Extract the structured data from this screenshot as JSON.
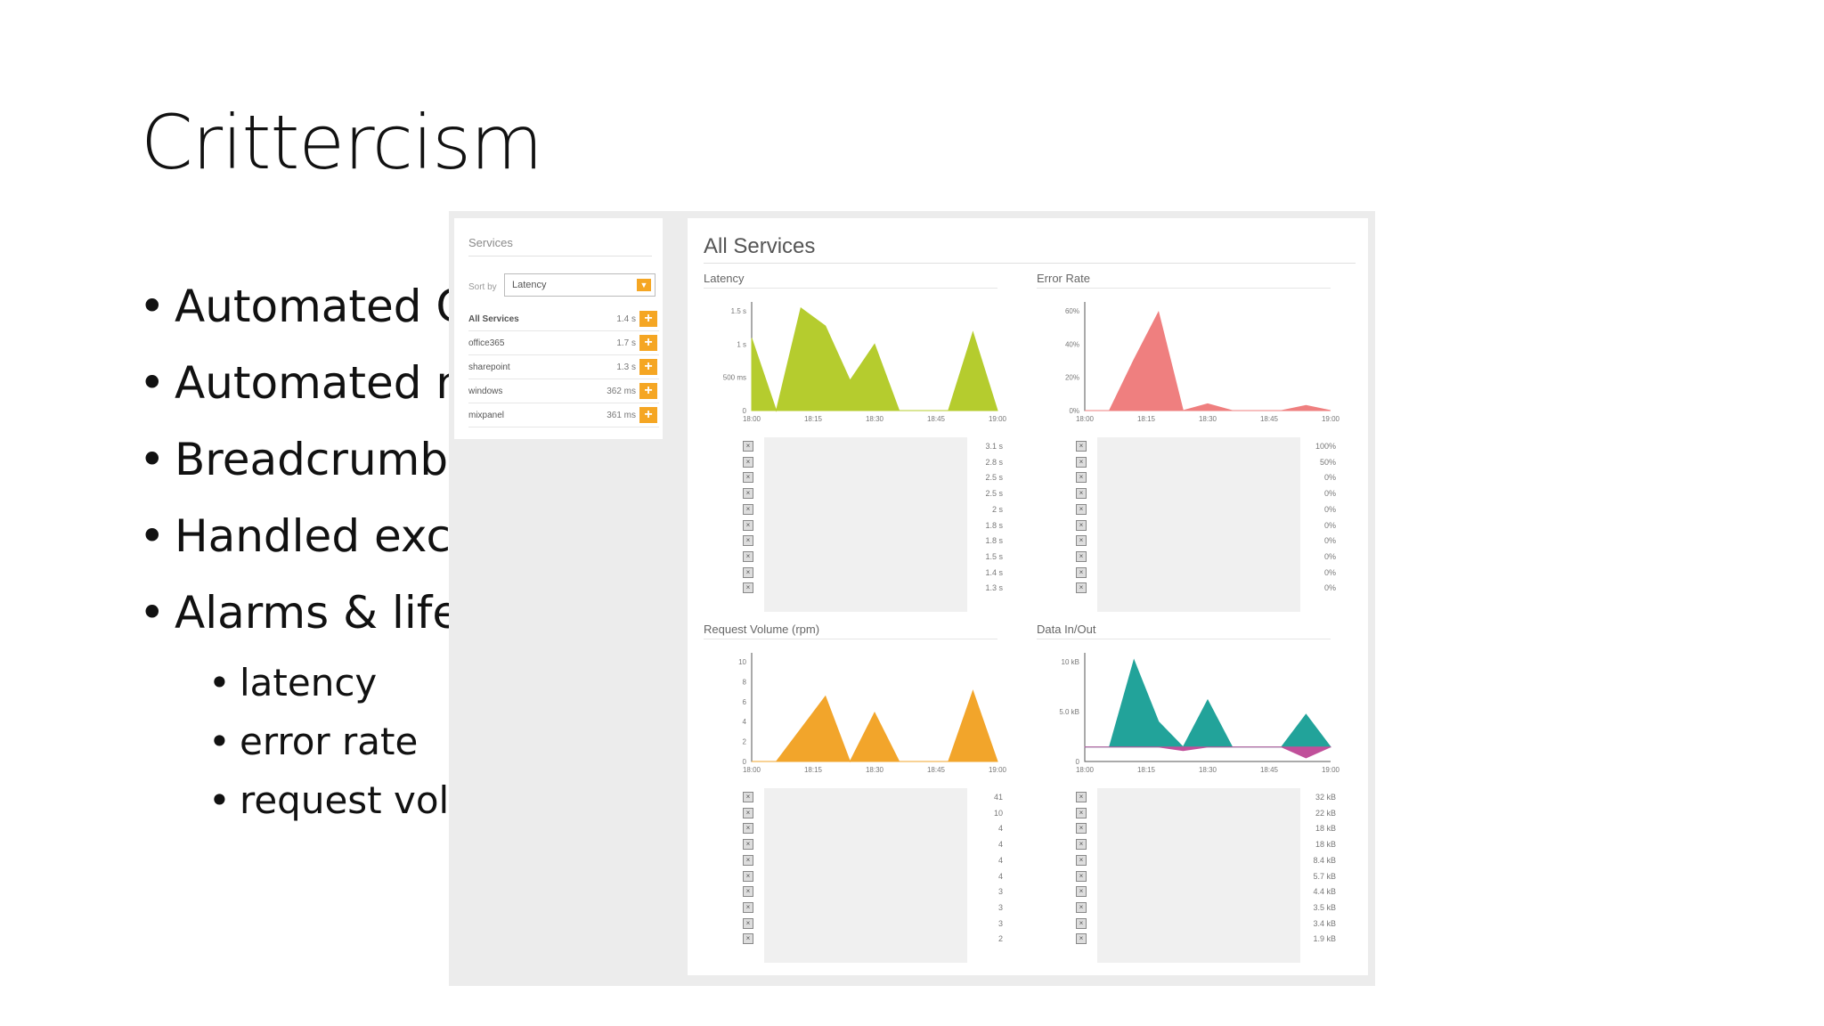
{
  "slide": {
    "title": "Crittercism",
    "bullets": [
      "Automated C",
      "Automated n",
      "Breadcrumbs",
      "Handled exce",
      "Alarms & life"
    ],
    "sub_bullets": [
      "latency",
      "error rate",
      "request vol"
    ]
  },
  "services_panel": {
    "title": "Services",
    "sort_label": "Sort by",
    "sort_value": "Latency",
    "items": [
      {
        "name": "All Services",
        "value": "1.4 s"
      },
      {
        "name": "office365",
        "value": "1.7 s"
      },
      {
        "name": "sharepoint",
        "value": "1.3 s"
      },
      {
        "name": "windows",
        "value": "362 ms"
      },
      {
        "name": "mixpanel",
        "value": "361 ms"
      }
    ]
  },
  "main_panel": {
    "title": "All Services"
  },
  "charts": [
    {
      "title": "Latency",
      "color": "#b5cc2e",
      "y_ticks": [
        "0",
        "500 ms",
        "1 s",
        "1.5 s"
      ],
      "x_ticks": [
        "18:00",
        "18:15",
        "18:30",
        "18:45",
        "19:00"
      ],
      "list_values": [
        "3.1 s",
        "2.8 s",
        "2.5 s",
        "2.5 s",
        "2 s",
        "1.8 s",
        "1.8 s",
        "1.5 s",
        "1.4 s",
        "1.3 s"
      ]
    },
    {
      "title": "Error Rate",
      "color": "#ef7f7f",
      "y_ticks": [
        "0%",
        "20%",
        "40%",
        "60%"
      ],
      "x_ticks": [
        "18:00",
        "18:15",
        "18:30",
        "18:45",
        "19:00"
      ],
      "list_values": [
        "100%",
        "50%",
        "0%",
        "0%",
        "0%",
        "0%",
        "0%",
        "0%",
        "0%",
        "0%"
      ]
    },
    {
      "title": "Request Volume (rpm)",
      "color": "#f2a52b",
      "y_ticks": [
        "0",
        "2",
        "4",
        "6",
        "8",
        "10"
      ],
      "x_ticks": [
        "18:00",
        "18:15",
        "18:30",
        "18:45",
        "19:00"
      ],
      "list_values": [
        "41",
        "10",
        "4",
        "4",
        "4",
        "4",
        "3",
        "3",
        "3",
        "2"
      ]
    },
    {
      "title": "Data In/Out",
      "color": "#22a39a",
      "color2": "#c0509a",
      "y_ticks": [
        "0",
        "5.0 kB",
        "10 kB"
      ],
      "x_ticks": [
        "18:00",
        "18:15",
        "18:30",
        "18:45",
        "19:00"
      ],
      "list_values": [
        "32 kB",
        "22 kB",
        "18 kB",
        "18 kB",
        "8.4 kB",
        "5.7 kB",
        "4.4 kB",
        "3.5 kB",
        "3.4 kB",
        "1.9 kB"
      ]
    }
  ],
  "chart_data": [
    {
      "type": "area",
      "title": "Latency",
      "x": [
        "18:00",
        "18:05",
        "18:10",
        "18:15",
        "18:20",
        "18:25",
        "18:30",
        "18:45",
        "18:50",
        "18:55",
        "19:00"
      ],
      "values": [
        1.2,
        0,
        1.7,
        1.4,
        0.5,
        1.1,
        0,
        0,
        0,
        1.3,
        0
      ],
      "ylim": [
        0,
        1.8
      ]
    },
    {
      "type": "area",
      "title": "Error Rate",
      "x": [
        "18:00",
        "18:05",
        "18:10",
        "18:15",
        "18:20",
        "18:25",
        "18:30",
        "18:45",
        "18:50",
        "18:55",
        "19:00"
      ],
      "values": [
        0,
        0,
        30,
        58,
        0,
        4,
        0,
        0,
        0,
        3,
        0
      ],
      "ylim": [
        0,
        64
      ]
    },
    {
      "type": "area",
      "title": "Request Volume (rpm)",
      "x": [
        "18:00",
        "18:05",
        "18:10",
        "18:15",
        "18:20",
        "18:25",
        "18:30",
        "18:45",
        "18:50",
        "18:55",
        "19:00"
      ],
      "values": [
        0,
        0,
        3,
        6,
        0,
        4.5,
        0,
        0,
        0,
        6.5,
        0
      ],
      "ylim": [
        0,
        10
      ]
    },
    {
      "type": "area",
      "title": "Data In/Out",
      "x": [
        "18:00",
        "18:05",
        "18:10",
        "18:15",
        "18:20",
        "18:25",
        "18:30",
        "18:45",
        "18:50",
        "18:55",
        "19:00"
      ],
      "values": [
        0,
        0,
        12,
        3.5,
        0,
        6.5,
        0,
        0,
        0,
        4.5,
        0
      ],
      "values_out": [
        0,
        0,
        0,
        0,
        -0.5,
        0,
        0,
        0,
        0,
        -1.5,
        0
      ],
      "ylim": [
        -2,
        13
      ]
    }
  ]
}
